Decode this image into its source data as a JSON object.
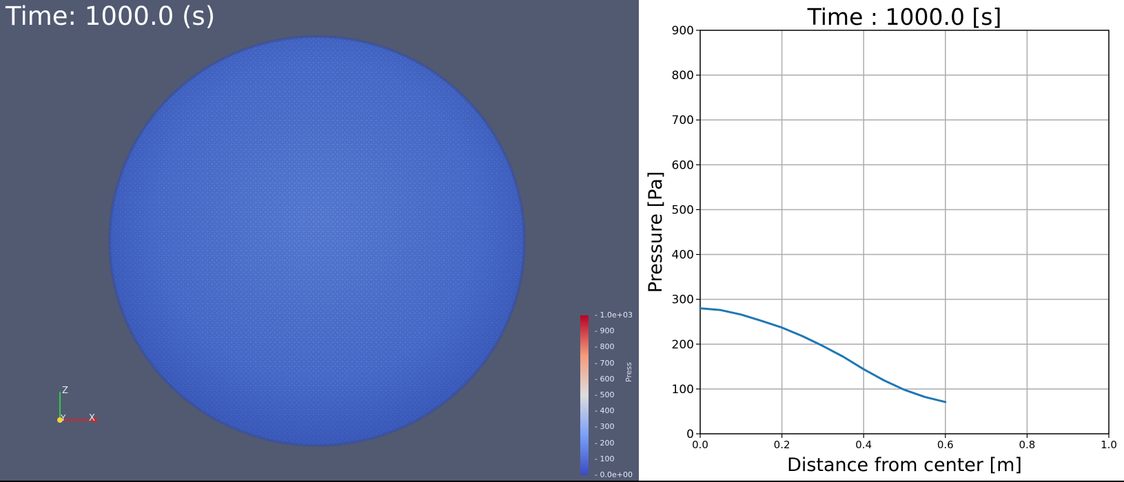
{
  "viewer": {
    "title": "Time: 1000.0 (s)",
    "background_color": "#525a72",
    "particle_color": "#4a6fd2",
    "axes_triad": {
      "z_label": "Z",
      "y_label": "Y",
      "x_label": "X"
    }
  },
  "colorbar": {
    "title": "Press",
    "labels": [
      "1.0e+03",
      "900",
      "800",
      "700",
      "600",
      "500",
      "400",
      "300",
      "200",
      "100",
      "0.0e+00"
    ],
    "range": [
      0,
      1000
    ],
    "colors": [
      "#3b4cc0",
      "#dddddd",
      "#b40426"
    ]
  },
  "chart_data": {
    "type": "line",
    "title": "Time : 1000.0 [s]",
    "xlabel": "Distance from center [m]",
    "ylabel": "Pressure [Pa]",
    "xlim": [
      0.0,
      1.0
    ],
    "ylim": [
      0,
      900
    ],
    "xticks": [
      0.0,
      0.2,
      0.4,
      0.6,
      0.8,
      1.0
    ],
    "xtick_labels": [
      "0.0",
      "0.2",
      "0.4",
      "0.6",
      "0.8",
      "1.0"
    ],
    "yticks": [
      0,
      100,
      200,
      300,
      400,
      500,
      600,
      700,
      800,
      900
    ],
    "ytick_labels": [
      "0",
      "100",
      "200",
      "300",
      "400",
      "500",
      "600",
      "700",
      "800",
      "900"
    ],
    "grid": true,
    "series": [
      {
        "name": "pressure",
        "color": "#1f77b4",
        "x": [
          0.0,
          0.05,
          0.1,
          0.15,
          0.2,
          0.25,
          0.3,
          0.35,
          0.4,
          0.45,
          0.5,
          0.55,
          0.6
        ],
        "y": [
          280,
          276,
          266,
          252,
          237,
          218,
          196,
          172,
          144,
          119,
          98,
          82,
          71
        ]
      }
    ]
  }
}
